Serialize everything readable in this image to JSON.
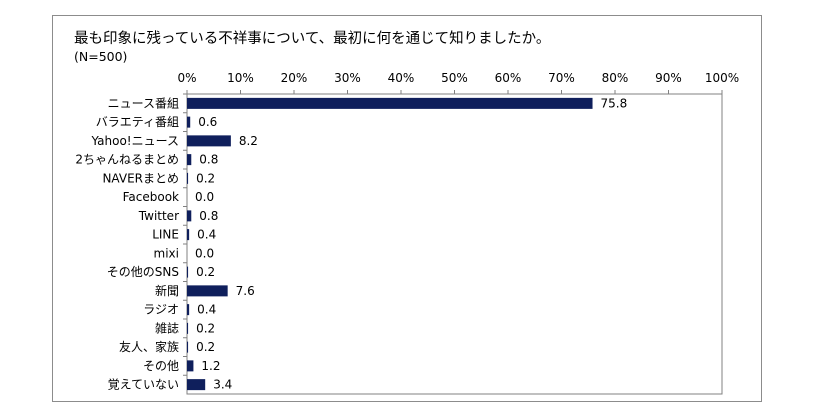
{
  "title": "最も印象に残っている不祥事について、最初に何を通じて知りましたか。",
  "subtitle": "(N=500)",
  "colors": {
    "bar": "#0f1f5c",
    "axis": "#808080",
    "frame": "#8c8c8c"
  },
  "chart_data": {
    "type": "bar",
    "orientation": "horizontal",
    "title": "最も印象に残っている不祥事について、最初に何を通じて知りましたか。",
    "subtitle": "(N=500)",
    "categories": [
      "ニュース番組",
      "バラエティ番組",
      "Yahoo!ニュース",
      "2ちゃんねるまとめ",
      "NAVERまとめ",
      "Facebook",
      "Twitter",
      "LINE",
      "mixi",
      "その他のSNS",
      "新聞",
      "ラジオ",
      "雑誌",
      "友人、家族",
      "その他",
      "覚えていない"
    ],
    "values": [
      75.8,
      0.6,
      8.2,
      0.8,
      0.2,
      0.0,
      0.8,
      0.4,
      0.0,
      0.2,
      7.6,
      0.4,
      0.2,
      0.2,
      1.2,
      3.4
    ],
    "value_labels": [
      "75.8",
      "0.6",
      "8.2",
      "0.8",
      "0.2",
      "0.0",
      "0.8",
      "0.4",
      "0.0",
      "0.2",
      "7.6",
      "0.4",
      "0.2",
      "0.2",
      "1.2",
      "3.4"
    ],
    "xlim": [
      0,
      100
    ],
    "xticks": [
      "0%",
      "10%",
      "20%",
      "30%",
      "40%",
      "50%",
      "60%",
      "70%",
      "80%",
      "90%",
      "100%"
    ],
    "x_axis_position": "top",
    "grid": false,
    "legend": "none"
  }
}
